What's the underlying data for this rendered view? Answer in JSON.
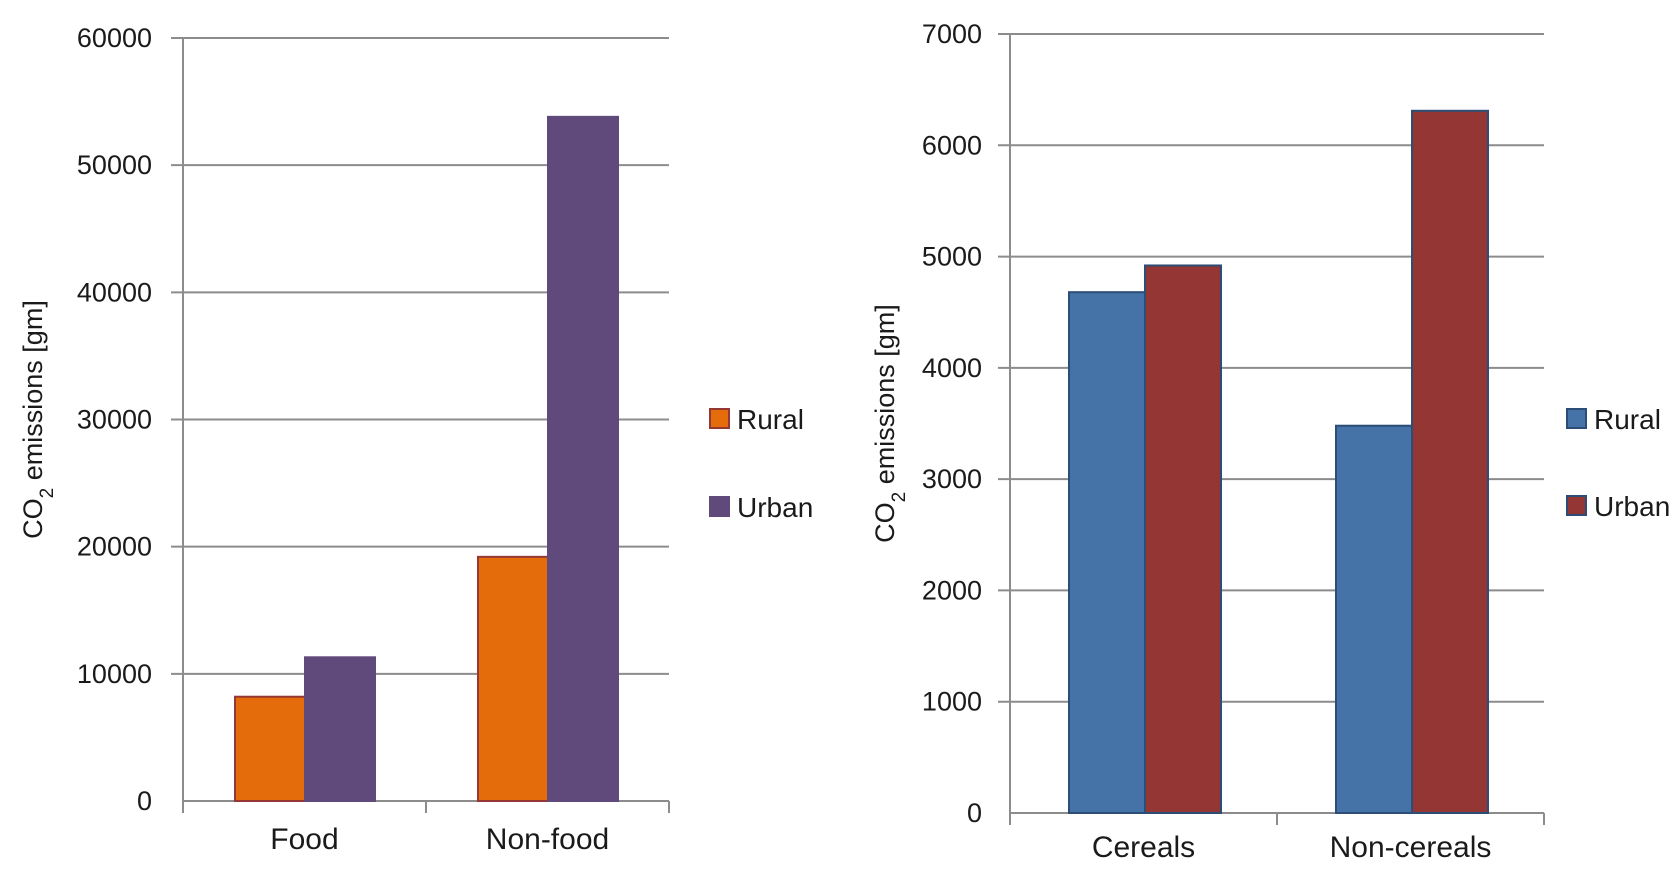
{
  "chart_data": [
    {
      "type": "bar",
      "title": "",
      "ylabel": "CO2 emissions [gm]",
      "ylabel_parts": {
        "base": "CO",
        "sub": "2",
        "rest": " emissions [gm]"
      },
      "xlabel": "",
      "categories": [
        "Food",
        "Non-food"
      ],
      "series": [
        {
          "name": "Rural",
          "values": [
            8200,
            19200
          ],
          "color": "#E46C0A",
          "stroke": "#953735"
        },
        {
          "name": "Urban",
          "values": [
            11300,
            53800
          ],
          "color": "#604A7B",
          "stroke": "#604A7B"
        }
      ],
      "ylim": [
        0,
        60000
      ],
      "yticks": [
        0,
        10000,
        20000,
        30000,
        40000,
        50000,
        60000
      ],
      "grid": true,
      "legend": "right"
    },
    {
      "type": "bar",
      "title": "",
      "ylabel": "CO2 emissions [gm]",
      "ylabel_parts": {
        "base": "CO",
        "sub": "2",
        "rest": " emissions [gm]"
      },
      "xlabel": "",
      "categories": [
        "Cereals",
        "Non-cereals"
      ],
      "series": [
        {
          "name": "Rural",
          "values": [
            4680,
            3480
          ],
          "color": "#4572A7",
          "stroke": "#2C4D75"
        },
        {
          "name": "Urban",
          "values": [
            4920,
            6310
          ],
          "color": "#943634",
          "stroke": "#2C4D75"
        }
      ],
      "ylim": [
        0,
        7000
      ],
      "yticks": [
        0,
        1000,
        2000,
        3000,
        4000,
        5000,
        6000,
        7000
      ],
      "grid": true,
      "legend": "right"
    }
  ]
}
